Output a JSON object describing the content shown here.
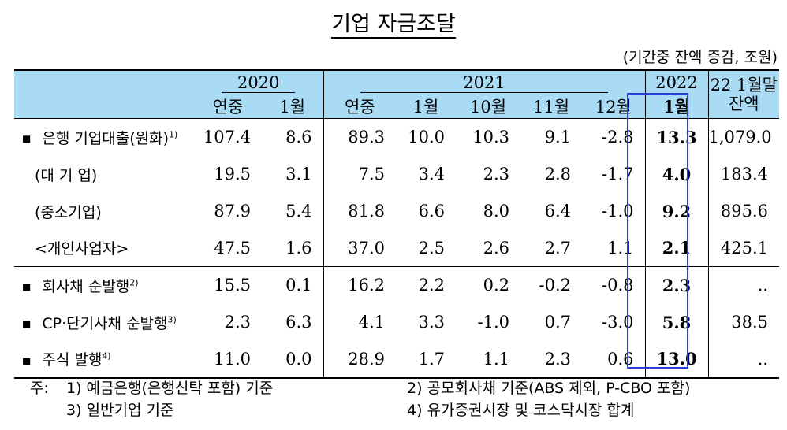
{
  "title": "기업 자금조달",
  "unit": "(기간중 잔액 증감, 조원)",
  "header": {
    "groups": [
      "2020",
      "2021",
      "2022",
      "22 1월말 잔액"
    ],
    "sub": [
      "연중",
      "1월",
      "연중",
      "1월",
      "10월",
      "11월",
      "12월",
      "1월"
    ],
    "balance_line1": "22 1월말",
    "balance_line2": "잔액"
  },
  "rows": [
    {
      "label": "은행 기업대출(원화)",
      "sup": "1)",
      "values": [
        "107.4",
        "8.6",
        "89.3",
        "10.0",
        "10.3",
        "9.1",
        "-2.8",
        "13.3",
        "1,079.0"
      ]
    },
    {
      "label": "(대 기 업)",
      "sup": "",
      "values": [
        "19.5",
        "3.1",
        "7.5",
        "3.4",
        "2.3",
        "2.8",
        "-1.7",
        "4.0",
        "183.4"
      ]
    },
    {
      "label": "(중소기업)",
      "sup": "",
      "values": [
        "87.9",
        "5.4",
        "81.8",
        "6.6",
        "8.0",
        "6.4",
        "-1.0",
        "9.2",
        "895.6"
      ]
    },
    {
      "label": "<개인사업자>",
      "sup": "",
      "values": [
        "47.5",
        "1.6",
        "37.0",
        "2.5",
        "2.6",
        "2.7",
        "1.1",
        "2.1",
        "425.1"
      ]
    },
    {
      "label": "회사채 순발행",
      "sup": "2)",
      "values": [
        "15.5",
        "0.1",
        "16.2",
        "2.2",
        "0.2",
        "-0.2",
        "-0.8",
        "2.3",
        ".."
      ]
    },
    {
      "label": "CP·단기사채 순발행",
      "sup": "3)",
      "values": [
        "2.3",
        "6.3",
        "4.1",
        "3.3",
        "-1.0",
        "0.7",
        "-3.0",
        "5.8",
        "38.5"
      ]
    },
    {
      "label": "주식 발행",
      "sup": "4)",
      "values": [
        "11.0",
        "0.0",
        "28.9",
        "1.7",
        "1.1",
        "2.3",
        "0.6",
        "13.0",
        ".."
      ]
    }
  ],
  "notes": {
    "prefix": "주:",
    "n1": "1) 예금은행(은행신탁 포함) 기준",
    "n2": "2) 공모회사채 기준(ABS 제외, P-CBO 포함)",
    "n3": "3) 일반기업 기준",
    "n4": "4) 유가증권시장 및 코스닥시장 합계"
  },
  "colors": {
    "header_bg": "#a9dbf5",
    "highlight_border": "#2a3fd6"
  }
}
